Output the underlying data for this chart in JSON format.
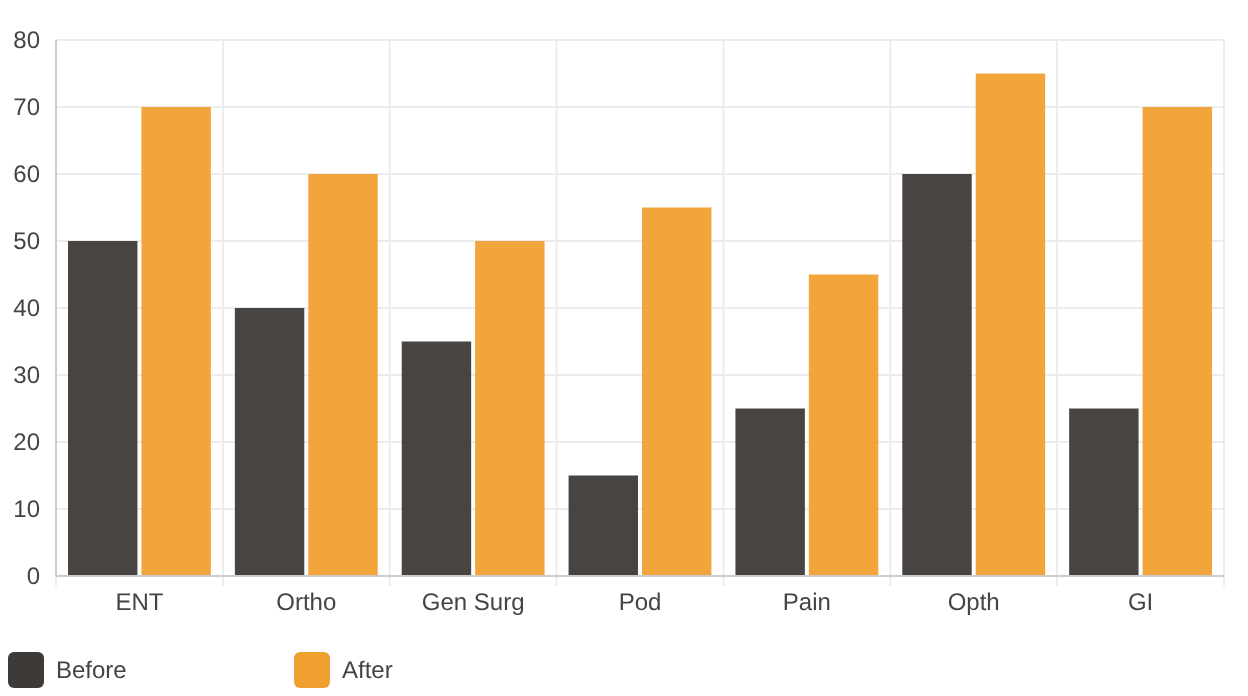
{
  "chart_data": {
    "type": "bar",
    "categories": [
      "ENT",
      "Ortho",
      "Gen Surg",
      "Pod",
      "Pain",
      "Opth",
      "GI"
    ],
    "series": [
      {
        "name": "Before",
        "color": "#3d3a38",
        "values": [
          50,
          40,
          35,
          15,
          25,
          60,
          25
        ]
      },
      {
        "name": "After",
        "color": "#f0a030",
        "values": [
          70,
          60,
          50,
          55,
          45,
          75,
          70
        ]
      }
    ],
    "ylim": [
      0,
      80
    ],
    "yticks": [
      0,
      10,
      20,
      30,
      40,
      50,
      60,
      70,
      80
    ],
    "grid": true,
    "legend": "bottom left"
  }
}
